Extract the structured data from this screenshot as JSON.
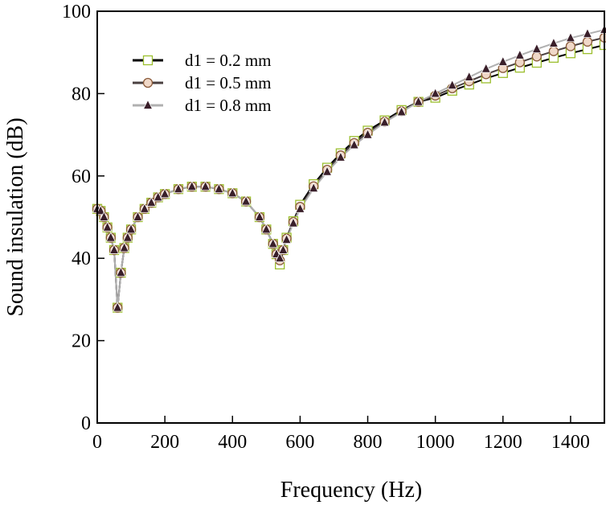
{
  "chart_data": {
    "type": "line",
    "x_label": "Frequency (Hz)",
    "y_label": "Sound insulation (dB)",
    "x": [
      0,
      10,
      20,
      30,
      40,
      50,
      60,
      70,
      80,
      90,
      100,
      120,
      140,
      160,
      180,
      200,
      240,
      280,
      320,
      360,
      400,
      440,
      480,
      500,
      520,
      530,
      540,
      550,
      560,
      580,
      600,
      640,
      680,
      720,
      760,
      800,
      850,
      900,
      950,
      1000,
      1050,
      1100,
      1150,
      1200,
      1250,
      1300,
      1350,
      1400,
      1450,
      1500
    ],
    "series": [
      {
        "name": "d1 = 0.2 mm",
        "color": "#000000",
        "marker": "square",
        "marker_color": "#9cbf2e",
        "values": [
          52,
          51.5,
          50,
          47.5,
          45,
          42,
          28,
          36.5,
          42.5,
          45,
          47,
          50,
          52,
          53.5,
          54.8,
          55.6,
          56.8,
          57.4,
          57.4,
          56.8,
          55.8,
          53.8,
          50,
          47,
          43.5,
          41,
          38.5,
          42,
          45,
          49,
          53,
          58,
          62,
          65.5,
          68.5,
          71,
          73.5,
          76,
          78,
          79,
          80.7,
          82.2,
          83.7,
          85,
          86.3,
          87.5,
          88.7,
          89.8,
          90.8,
          91.8
        ]
      },
      {
        "name": "d1 = 0.5 mm",
        "color": "#4a4040",
        "marker": "circle",
        "marker_color": "#8a5a3a",
        "values": [
          52,
          51.5,
          50,
          47.5,
          45,
          42,
          28,
          36.5,
          42.5,
          45,
          47,
          50,
          52,
          53.5,
          54.8,
          55.6,
          56.8,
          57.4,
          57.4,
          56.8,
          55.8,
          53.8,
          50,
          47,
          43.5,
          41,
          39.5,
          42,
          44.8,
          48.8,
          52.5,
          57.5,
          61.5,
          65,
          68,
          70.5,
          73.2,
          75.7,
          78,
          79.5,
          81.3,
          83,
          84.7,
          86.2,
          87.6,
          89,
          90.3,
          91.5,
          92.6,
          93.6
        ]
      },
      {
        "name": "d1 = 0.8 mm",
        "color": "#b0b0b0",
        "marker": "triangle",
        "marker_color": "#3a1f2a",
        "values": [
          52,
          51.5,
          50,
          47.5,
          45,
          42,
          28,
          36.5,
          42.5,
          45,
          47,
          50,
          52,
          53.5,
          54.8,
          55.6,
          56.8,
          57.4,
          57.4,
          56.8,
          55.8,
          53.8,
          50,
          47,
          43.5,
          41,
          40,
          42,
          44.5,
          48.5,
          52,
          57,
          61,
          64.5,
          67.5,
          70,
          73,
          75.5,
          78,
          80,
          82,
          84,
          86,
          87.7,
          89.3,
          90.8,
          92.2,
          93.5,
          94.5,
          95.5
        ]
      }
    ],
    "xlim": [
      0,
      1500
    ],
    "xticks": [
      0,
      200,
      400,
      600,
      800,
      1000,
      1200,
      1400
    ],
    "ylim": [
      0,
      100
    ],
    "yticks": [
      0,
      20,
      40,
      60,
      80,
      100
    ],
    "legend": "upper left"
  }
}
